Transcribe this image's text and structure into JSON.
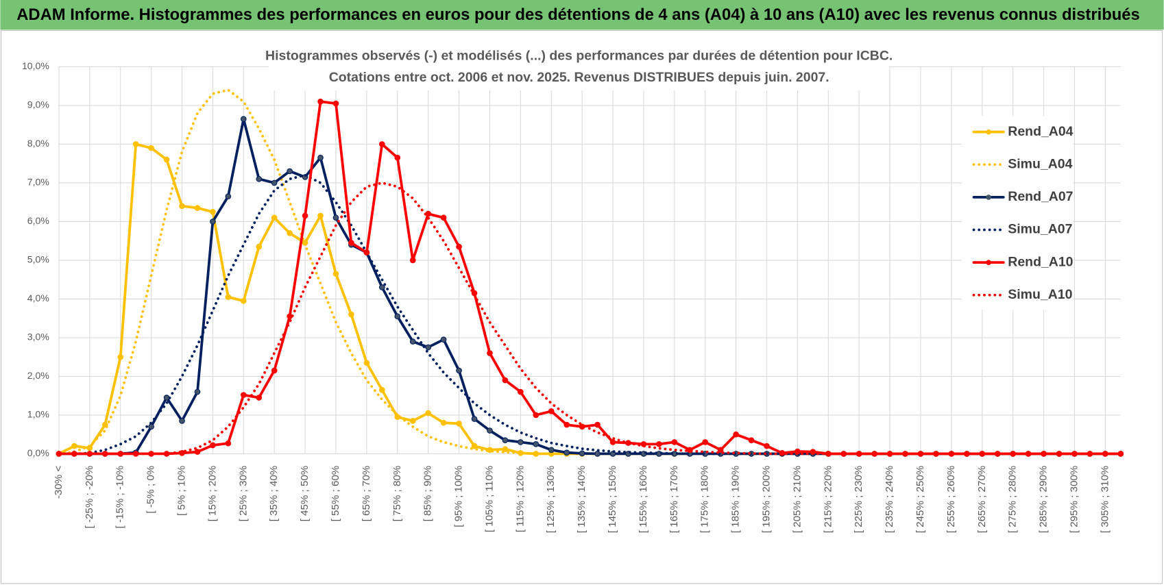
{
  "header": {
    "title": "ADAM Informe. Histogrammes des performances en euros pour des détentions de 4 ans (A04) à 10 ans (A10) avec les revenus connus distribués"
  },
  "chart_data": {
    "type": "line",
    "title": "Histogrammes observés (-) et modélisés (...) des performances par durées de détention pour ICBC.",
    "subtitle": "Cotations entre oct. 2006 et nov. 2025. Revenus DISTRIBUES depuis juin. 2007.",
    "categories": [
      "-30% <",
      null,
      "[ -25% ; -20%",
      null,
      "[ -15% ; -10%",
      null,
      "[ -5% ; 0%",
      null,
      "[ 5% ; 10%",
      null,
      "[ 15% ; 20%",
      null,
      "[ 25% ; 30%",
      null,
      "[ 35% ; 40%",
      null,
      "[ 45% ; 50%",
      null,
      "[ 55% ; 60%",
      null,
      "[ 65% ; 70%",
      null,
      "[ 75% ; 80%",
      null,
      "[ 85% ; 90%",
      null,
      "[ 95% ; 100%",
      null,
      "[ 105% ; 110%",
      null,
      "[ 115% ; 120%",
      null,
      "[ 125% ; 130%",
      null,
      "[ 135% ; 140%",
      null,
      "[ 145% ; 150%",
      null,
      "[ 155% ; 160%",
      null,
      "[ 165% ; 170%",
      null,
      "[ 175% ; 180%",
      null,
      "[ 185% ; 190%",
      null,
      "[ 195% ; 200%",
      null,
      "[ 205% ; 210%",
      null,
      "[ 215% ; 220%",
      null,
      "[ 225% ; 230%",
      null,
      "[ 235% ; 240%",
      null,
      "[ 245% ; 250%",
      null,
      "[ 255% ; 260%",
      null,
      "[ 265% ; 270%",
      null,
      "[ 275% ; 280%",
      null,
      "[ 285% ; 290%",
      null,
      "[ 295% ; 300%",
      null,
      "[ 305% ; 310%",
      null
    ],
    "series": [
      {
        "name": "Rend_A04",
        "color": "#ffc000",
        "style": "solid",
        "values": [
          0,
          0.2,
          0.15,
          0.75,
          2.5,
          8.0,
          7.9,
          7.6,
          6.4,
          6.35,
          6.25,
          4.05,
          3.95,
          5.35,
          6.1,
          5.7,
          5.45,
          6.15,
          4.65,
          3.6,
          2.35,
          1.65,
          0.95,
          0.85,
          1.05,
          0.8,
          0.78,
          0.2,
          0.1,
          0.12,
          0.02,
          0,
          0,
          0,
          0,
          0,
          0,
          0,
          0,
          0,
          0,
          0,
          0,
          0,
          0,
          0,
          0,
          0,
          0,
          0,
          0,
          0,
          0,
          0,
          0,
          0,
          0,
          0,
          0,
          0,
          0,
          0,
          0,
          0,
          0,
          0,
          0,
          0,
          0,
          0
        ]
      },
      {
        "name": "Simu_A04",
        "color": "#ffc000",
        "style": "dotted",
        "values": [
          0,
          0.05,
          0.2,
          0.6,
          1.5,
          2.9,
          4.6,
          6.3,
          7.8,
          8.8,
          9.3,
          9.4,
          9.1,
          8.4,
          7.6,
          6.5,
          5.4,
          4.4,
          3.4,
          2.6,
          1.9,
          1.4,
          1.0,
          0.7,
          0.45,
          0.3,
          0.2,
          0.12,
          0.07,
          0.04,
          0.02,
          0,
          0,
          0,
          0,
          0,
          0,
          0,
          0,
          0,
          0,
          0,
          0,
          0,
          0,
          0,
          0,
          0,
          0,
          0,
          0,
          0,
          0,
          0,
          0,
          0,
          0,
          0,
          0,
          0,
          0,
          0,
          0,
          0,
          0,
          0,
          0,
          0,
          0,
          0
        ]
      },
      {
        "name": "Rend_A07",
        "color": "#002060",
        "style": "solid",
        "values": [
          0,
          0,
          0,
          0,
          0,
          0.03,
          0.7,
          1.45,
          0.85,
          1.6,
          6.0,
          6.65,
          8.65,
          7.1,
          7.0,
          7.3,
          7.15,
          7.65,
          6.1,
          5.4,
          5.2,
          4.3,
          3.55,
          2.9,
          2.75,
          2.95,
          2.15,
          0.9,
          0.6,
          0.35,
          0.3,
          0.25,
          0.1,
          0.03,
          0.01,
          0,
          0,
          0,
          0,
          0,
          0,
          0,
          0,
          0,
          0,
          0,
          0,
          0,
          0,
          0,
          0,
          0,
          0,
          0,
          0,
          0,
          0,
          0,
          0,
          0,
          0,
          0,
          0,
          0,
          0,
          0,
          0,
          0,
          0,
          0
        ]
      },
      {
        "name": "Simu_A07",
        "color": "#002060",
        "style": "dotted",
        "values": [
          0,
          0,
          0.02,
          0.1,
          0.25,
          0.45,
          0.8,
          1.3,
          2.0,
          2.8,
          3.7,
          4.6,
          5.4,
          6.2,
          6.8,
          7.1,
          7.2,
          7.0,
          6.5,
          5.9,
          5.2,
          4.5,
          3.8,
          3.2,
          2.6,
          2.1,
          1.7,
          1.3,
          1.0,
          0.75,
          0.55,
          0.4,
          0.28,
          0.2,
          0.13,
          0.09,
          0.06,
          0.04,
          0.03,
          0.02,
          0.01,
          0,
          0,
          0,
          0,
          0,
          0,
          0,
          0,
          0,
          0,
          0,
          0,
          0,
          0,
          0,
          0,
          0,
          0,
          0,
          0,
          0,
          0,
          0,
          0,
          0,
          0,
          0,
          0,
          0
        ]
      },
      {
        "name": "Rend_A10",
        "color": "#ff0000",
        "style": "solid",
        "values": [
          0,
          0,
          0,
          0,
          0,
          0,
          0,
          0,
          0.02,
          0.05,
          0.22,
          0.27,
          1.52,
          1.45,
          2.15,
          3.55,
          6.15,
          9.1,
          9.05,
          5.45,
          5.2,
          8.0,
          7.65,
          5.0,
          6.2,
          6.1,
          5.35,
          4.15,
          2.6,
          1.9,
          1.6,
          1.0,
          1.1,
          0.75,
          0.7,
          0.75,
          0.3,
          0.28,
          0.25,
          0.25,
          0.3,
          0.1,
          0.3,
          0.1,
          0.5,
          0.35,
          0.2,
          0.02,
          0.06,
          0.05,
          0,
          0,
          0,
          0,
          0,
          0,
          0,
          0,
          0,
          0,
          0,
          0,
          0,
          0,
          0,
          0,
          0,
          0,
          0,
          0
        ]
      },
      {
        "name": "Simu_A10",
        "color": "#ff0000",
        "style": "dotted",
        "values": [
          0,
          0,
          0,
          0,
          0,
          0,
          0,
          0,
          0.05,
          0.15,
          0.35,
          0.7,
          1.2,
          1.8,
          2.6,
          3.4,
          4.3,
          5.1,
          5.9,
          6.5,
          6.9,
          7.0,
          6.9,
          6.6,
          6.1,
          5.5,
          4.8,
          4.1,
          3.4,
          2.8,
          2.2,
          1.7,
          1.3,
          1.0,
          0.75,
          0.55,
          0.4,
          0.28,
          0.2,
          0.14,
          0.1,
          0.07,
          0.05,
          0.03,
          0.02,
          0.01,
          0,
          0,
          0,
          0,
          0,
          0,
          0,
          0,
          0,
          0,
          0,
          0,
          0,
          0,
          0,
          0,
          0,
          0,
          0,
          0,
          0,
          0,
          0,
          0
        ]
      }
    ],
    "ylim": [
      0,
      10
    ],
    "yticks": [
      {
        "value": 0,
        "label": "0,0%"
      },
      {
        "value": 1,
        "label": "1,0%"
      },
      {
        "value": 2,
        "label": "2,0%"
      },
      {
        "value": 3,
        "label": "3,0%"
      },
      {
        "value": 4,
        "label": "4,0%"
      },
      {
        "value": 5,
        "label": "5,0%"
      },
      {
        "value": 6,
        "label": "6,0%"
      },
      {
        "value": 7,
        "label": "7,0%"
      },
      {
        "value": 8,
        "label": "8,0%"
      },
      {
        "value": 9,
        "label": "9,0%"
      },
      {
        "value": 10,
        "label": "10,0%"
      }
    ],
    "grid": true,
    "legend": "right"
  }
}
